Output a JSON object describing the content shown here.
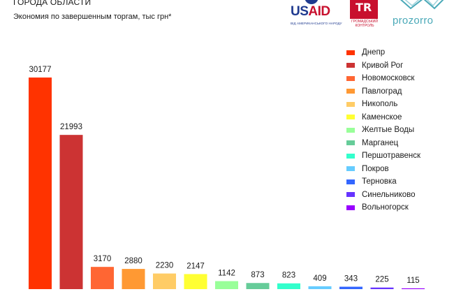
{
  "header": {
    "title": "ГОРОДА ОБЛАСТИ",
    "subtitle": "Экономия по завершенным торгам, тыс грн*"
  },
  "logos": {
    "usaid": "USAID",
    "usaid_tagline": "ВІД АМЕРИКАНСЬКОГО НАРОДУ",
    "hromadskyi_letters": "TR",
    "hromadskyi_caption": "ГРОМАДСЬКИЙ КОНТРОЛЬ",
    "prozorro": "prozorro"
  },
  "chart_data": {
    "type": "bar",
    "title": "Экономия по завершенным торгам, тыс грн*",
    "categories": [
      "Днепр",
      "Кривой Рог",
      "Новомосковск",
      "Павлоград",
      "Никополь",
      "Каменское",
      "Желтые Воды",
      "Марганец",
      "Першотравенск",
      "Покров",
      "Терновка",
      "Синельниково",
      "Вольногорск"
    ],
    "values": [
      30177,
      21993,
      3170,
      2880,
      2230,
      2147,
      1142,
      873,
      823,
      409,
      343,
      225,
      115
    ],
    "colors": [
      "#ff3300",
      "#cc3333",
      "#ff6633",
      "#ff9933",
      "#ffcc66",
      "#ffff33",
      "#99ff99",
      "#66cc99",
      "#33ffcc",
      "#66ccff",
      "#3366ff",
      "#6633ff",
      "#9900ff"
    ],
    "data_labels": [
      "30177",
      "21993",
      "3170",
      "2880",
      "2230",
      "2147",
      "1142",
      "873",
      "823",
      "409",
      "343",
      "225",
      "115"
    ],
    "legend_placement": "right",
    "grid": false,
    "axes_visible": false
  }
}
